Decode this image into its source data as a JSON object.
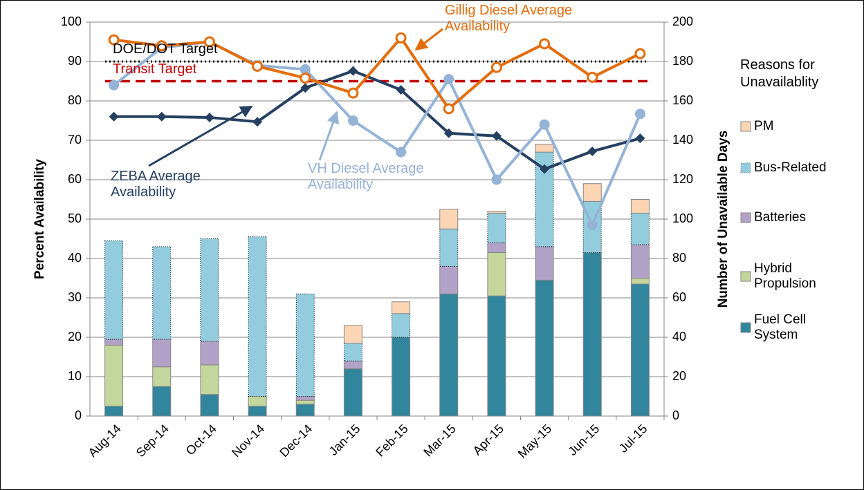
{
  "chart_data": {
    "type": "combo",
    "categories": [
      "Aug-14",
      "Sep-14",
      "Oct-14",
      "Nov-14",
      "Dec-14",
      "Jan-15",
      "Feb-15",
      "Mar-15",
      "Apr-15",
      "May-15",
      "Jun-15",
      "Jul-15"
    ],
    "y_label": "Percent Availability",
    "y2_label": "Number of Unavailable Days",
    "legend_title": "Reasons for Unavailablity",
    "ylim": [
      0,
      100
    ],
    "yticks": [
      0,
      10,
      20,
      30,
      40,
      50,
      60,
      70,
      80,
      90,
      100
    ],
    "y2lim": [
      0,
      200
    ],
    "y2ticks": [
      0,
      20,
      40,
      60,
      80,
      100,
      120,
      140,
      160,
      180,
      200
    ],
    "grid": true,
    "legend": "right",
    "series": [
      {
        "name": "Fuel Cell System",
        "type": "bar",
        "axis": "y2",
        "color": "#31859c",
        "values": [
          5,
          15,
          11,
          5,
          6,
          24,
          40,
          62,
          61,
          69,
          83,
          67
        ]
      },
      {
        "name": "Hybrid Propulsion",
        "type": "bar",
        "axis": "y2",
        "color": "#c3d69b",
        "values": [
          31,
          10,
          15,
          5,
          2,
          0,
          0,
          0,
          22,
          0,
          0,
          3
        ]
      },
      {
        "name": "Batteries",
        "type": "bar",
        "axis": "y2",
        "color": "#b3a2c7",
        "values": [
          3,
          14,
          12,
          0,
          2,
          4,
          0,
          14,
          5,
          17,
          0,
          17
        ]
      },
      {
        "name": "Bus-Related",
        "type": "bar",
        "axis": "y2",
        "color": "#93cddd",
        "values": [
          50,
          47,
          52,
          81,
          52,
          9,
          12,
          19,
          15,
          48,
          26,
          16
        ]
      },
      {
        "name": "PM",
        "type": "bar",
        "axis": "y2",
        "color": "#fcd5b5",
        "values": [
          0,
          0,
          0,
          0,
          0,
          9,
          6,
          10,
          1,
          4,
          9,
          7
        ]
      },
      {
        "name": "ZEBA Average Availability",
        "type": "line",
        "axis": "y",
        "color": "#254061",
        "marker": "diamond",
        "values": [
          76,
          76,
          75.8,
          74.7,
          83.3,
          87.6,
          82.8,
          71.8,
          71.1,
          62.7,
          67.2,
          70.5
        ]
      },
      {
        "name": "VH Diesel Average Availability",
        "type": "line",
        "axis": "y",
        "color": "#95b3d7",
        "marker": "circle",
        "values": [
          84,
          93.5,
          95,
          89,
          88,
          75,
          67,
          85.5,
          60,
          74,
          48.5,
          76.7
        ]
      },
      {
        "name": "Gillig Diesel Average Availability",
        "type": "line",
        "axis": "y",
        "color": "#e46c0a",
        "marker": "open-circle",
        "values": [
          95.5,
          94,
          95,
          88.8,
          85.8,
          82,
          96,
          78,
          88.5,
          94.5,
          86,
          92
        ]
      }
    ],
    "targets": [
      {
        "name": "DOE/DOT Target",
        "value": 90,
        "color": "#000000",
        "dash": "dotted"
      },
      {
        "name": "Transit Target",
        "value": 85,
        "color": "#c00000",
        "dash": "dashed"
      }
    ]
  }
}
